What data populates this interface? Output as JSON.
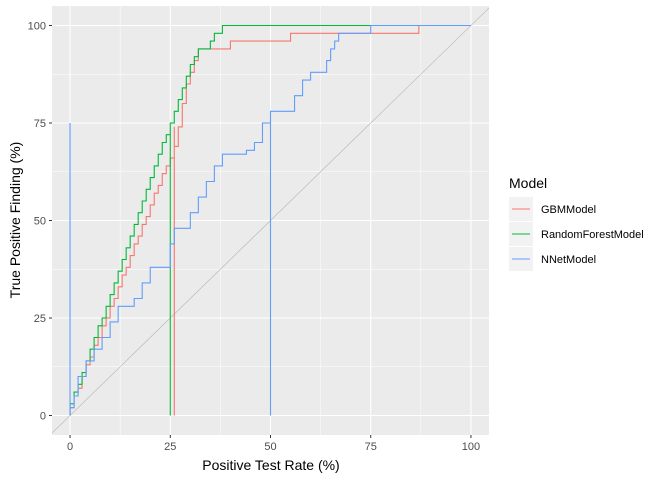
{
  "chart_data": {
    "type": "line",
    "xlabel": "Positive Test Rate (%)",
    "ylabel": "True Positive Finding (%)",
    "xlim": [
      -4.5,
      104.5
    ],
    "ylim": [
      -5,
      105
    ],
    "xticks": [
      0,
      25,
      50,
      75,
      100
    ],
    "yticks": [
      0,
      25,
      50,
      75,
      100
    ],
    "grid": true,
    "legend_title": "Model",
    "legend_position": "right",
    "colors": {
      "panel": "#EBEBEB",
      "grid": "#FFFFFF",
      "reference": "#B3B3B3"
    },
    "reference_line": {
      "x": [
        -5,
        105
      ],
      "y": [
        -5,
        105
      ]
    },
    "series": [
      {
        "name": "GBMModel",
        "color": "#F8766D",
        "x": [
          0,
          1,
          2,
          3,
          4,
          5,
          6,
          7,
          8,
          9,
          10,
          11,
          12,
          13,
          14,
          15,
          16,
          17,
          18,
          19,
          20,
          21,
          22,
          23,
          24,
          25,
          26,
          26,
          26,
          26,
          27,
          28,
          29,
          30,
          31,
          32,
          33,
          35,
          40,
          46,
          55,
          75,
          87,
          87,
          100
        ],
        "y": [
          0,
          2,
          5,
          7,
          10,
          13,
          15,
          18,
          20,
          23,
          25,
          28,
          30,
          33,
          36,
          38,
          41,
          44,
          46,
          49,
          51,
          54,
          57,
          59,
          62,
          64,
          66,
          0,
          74,
          66,
          69,
          74,
          80,
          85,
          88,
          91,
          94,
          94,
          94,
          96,
          96,
          98,
          98,
          100,
          100
        ]
      },
      {
        "name": "RandomForestModel",
        "color": "#00BA38",
        "x": [
          0,
          1,
          2,
          3,
          4,
          5,
          6,
          7,
          8,
          9,
          10,
          11,
          12,
          13,
          14,
          15,
          16,
          17,
          18,
          19,
          20,
          21,
          22,
          23,
          24,
          25,
          25,
          25,
          25,
          26,
          27,
          28,
          29,
          30,
          31,
          32,
          33,
          35,
          36,
          37,
          38,
          39,
          75,
          100
        ],
        "y": [
          0,
          3,
          6,
          8,
          11,
          14,
          17,
          20,
          23,
          25,
          28,
          31,
          34,
          37,
          40,
          43,
          46,
          49,
          52,
          55,
          58,
          61,
          64,
          67,
          70,
          72,
          0,
          73,
          72,
          75,
          78,
          81,
          84,
          87,
          90,
          92,
          94,
          94,
          96,
          98,
          98,
          100,
          100,
          100
        ]
      },
      {
        "name": "NNetModel",
        "color": "#619CFF",
        "x": [
          0,
          0,
          0,
          0,
          1,
          2,
          4,
          6,
          8,
          10,
          12,
          14,
          16,
          18,
          20,
          22,
          25,
          25,
          26,
          28,
          30,
          32,
          34,
          36,
          38,
          40,
          42,
          44,
          46,
          48,
          50,
          50,
          50,
          50,
          52,
          56,
          58,
          60,
          62,
          64,
          65,
          66,
          67,
          68,
          70,
          75,
          85,
          100
        ],
        "y": [
          0,
          75,
          75,
          0,
          2,
          5,
          10,
          14,
          17,
          20,
          24,
          28,
          28,
          30,
          34,
          38,
          38,
          40,
          44,
          48,
          48,
          52,
          56,
          60,
          64,
          67,
          67,
          67,
          68,
          70,
          75,
          75,
          0,
          75,
          78,
          78,
          82,
          86,
          88,
          88,
          91,
          94,
          96,
          98,
          98,
          98,
          100,
          100
        ]
      }
    ]
  }
}
